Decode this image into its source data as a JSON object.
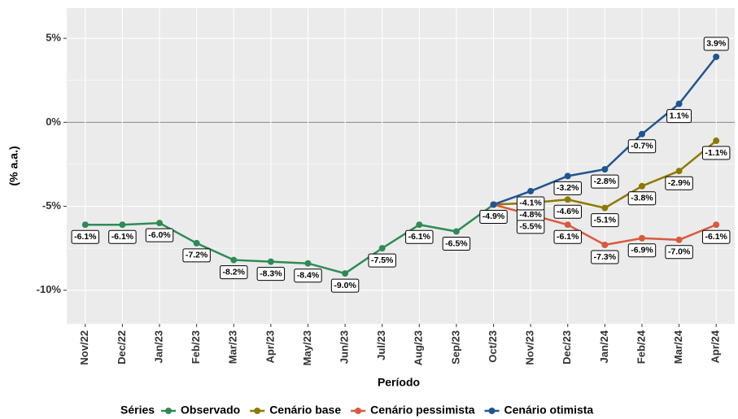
{
  "chart_data": {
    "type": "line",
    "x_label": "Período",
    "y_label": "(% a.a.)",
    "legend_title": "Séries",
    "categories": [
      "Nov/22",
      "Dec/22",
      "Jan/23",
      "Feb/23",
      "Mar/23",
      "Apr/23",
      "May/23",
      "Jun/23",
      "Jul/23",
      "Aug/23",
      "Sep/23",
      "Oct/23",
      "Nov/23",
      "Dec/23",
      "Jan/24",
      "Feb/24",
      "Mar/24",
      "Apr/24"
    ],
    "ylim": [
      -12,
      6.8
    ],
    "yticks": [
      {
        "value": -10,
        "label": "-10%"
      },
      {
        "value": -5,
        "label": "-5%"
      },
      {
        "value": 0,
        "label": "0%"
      },
      {
        "value": 5,
        "label": "5%"
      }
    ],
    "grid": true,
    "series": [
      {
        "name": "Observado",
        "color": "#2e8b57",
        "values": [
          -6.1,
          -6.1,
          -6.0,
          -7.2,
          -8.2,
          -8.3,
          -8.4,
          -9.0,
          -7.5,
          -6.1,
          -6.5,
          -4.9,
          null,
          null,
          null,
          null,
          null,
          null
        ],
        "value_labels": [
          "-6.1%",
          "-6.1%",
          "-6.0%",
          "-7.2%",
          "-8.2%",
          "-8.3%",
          "-8.4%",
          "-9.0%",
          "-7.5%",
          "-6.1%",
          "-6.5%",
          "-4.9%",
          null,
          null,
          null,
          null,
          null,
          null
        ]
      },
      {
        "name": "Cenário base",
        "color": "#8b7a00",
        "values": [
          null,
          null,
          null,
          null,
          null,
          null,
          null,
          null,
          null,
          null,
          null,
          -4.9,
          -4.8,
          -4.6,
          -5.1,
          -3.8,
          -2.9,
          -1.1
        ],
        "value_labels": [
          null,
          null,
          null,
          null,
          null,
          null,
          null,
          null,
          null,
          null,
          null,
          null,
          "-4.8%",
          "-4.6%",
          "-5.1%",
          "-3.8%",
          "-2.9%",
          "-1.1%"
        ]
      },
      {
        "name": "Cenário pessimista",
        "color": "#d95a3d",
        "values": [
          null,
          null,
          null,
          null,
          null,
          null,
          null,
          null,
          null,
          null,
          null,
          -4.9,
          -5.5,
          -6.1,
          -7.3,
          -6.9,
          -7.0,
          -6.1
        ],
        "value_labels": [
          null,
          null,
          null,
          null,
          null,
          null,
          null,
          null,
          null,
          null,
          null,
          null,
          "-5.5%",
          "-6.1%",
          "-7.3%",
          "-6.9%",
          "-7.0%",
          "-6.1%"
        ]
      },
      {
        "name": "Cenário otimista",
        "color": "#1f5591",
        "values": [
          null,
          null,
          null,
          null,
          null,
          null,
          null,
          null,
          null,
          null,
          null,
          -4.9,
          -4.1,
          -3.2,
          -2.8,
          -0.7,
          1.1,
          3.9
        ],
        "value_labels": [
          null,
          null,
          null,
          null,
          null,
          null,
          null,
          null,
          null,
          null,
          null,
          null,
          "-4.1%",
          "-3.2%",
          "-2.8%",
          "-0.7%",
          "1.1%",
          "3.9%"
        ]
      }
    ]
  }
}
